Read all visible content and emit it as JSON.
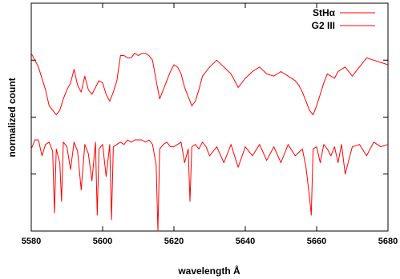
{
  "chart_data": {
    "type": "line",
    "title": "",
    "xlabel": "wavelength Å",
    "ylabel": "normalized count",
    "xlim": [
      5580,
      5680
    ],
    "x_ticks": [
      5580,
      5600,
      5620,
      5640,
      5660,
      5680
    ],
    "x_tick_labels": [
      "5580",
      "5600",
      "5620",
      "5640",
      "5660",
      "5680"
    ],
    "ylim": [
      0,
      1
    ],
    "y_ticks_unlabeled": [
      0.25,
      0.5,
      0.75,
      1.0
    ],
    "grid": false,
    "legend_position": "top-right",
    "series": [
      {
        "name": "StHα",
        "color": "#ff0000",
        "x": [
          5580,
          5582,
          5584,
          5585,
          5586,
          5587,
          5588,
          5589,
          5590,
          5591,
          5592,
          5593,
          5594,
          5595,
          5596,
          5597,
          5598,
          5599,
          5600,
          5601,
          5602,
          5603,
          5604,
          5605,
          5606,
          5607,
          5608,
          5609,
          5610,
          5611,
          5612,
          5613,
          5614,
          5615,
          5616,
          5617,
          5618,
          5619,
          5620,
          5621,
          5622,
          5623,
          5624,
          5625,
          5626,
          5627,
          5628,
          5629,
          5630,
          5632,
          5634,
          5636,
          5638,
          5640,
          5642,
          5644,
          5646,
          5648,
          5650,
          5652,
          5654,
          5655,
          5656,
          5657,
          5658,
          5659,
          5660,
          5661,
          5662,
          5663,
          5664,
          5665,
          5666,
          5668,
          5670,
          5672,
          5674,
          5676,
          5678,
          5680
        ],
        "values": [
          0.78,
          0.72,
          0.62,
          0.55,
          0.53,
          0.51,
          0.53,
          0.58,
          0.62,
          0.65,
          0.71,
          0.64,
          0.61,
          0.68,
          0.62,
          0.6,
          0.63,
          0.66,
          0.65,
          0.6,
          0.57,
          0.61,
          0.66,
          0.77,
          0.77,
          0.76,
          0.76,
          0.78,
          0.77,
          0.78,
          0.78,
          0.77,
          0.75,
          0.66,
          0.58,
          0.62,
          0.66,
          0.7,
          0.73,
          0.72,
          0.69,
          0.63,
          0.59,
          0.55,
          0.57,
          0.62,
          0.68,
          0.7,
          0.72,
          0.75,
          0.72,
          0.69,
          0.63,
          0.67,
          0.7,
          0.72,
          0.69,
          0.68,
          0.7,
          0.68,
          0.66,
          0.64,
          0.61,
          0.57,
          0.53,
          0.51,
          0.55,
          0.6,
          0.65,
          0.69,
          0.68,
          0.67,
          0.7,
          0.72,
          0.68,
          0.72,
          0.76,
          0.75,
          0.74,
          0.73
        ]
      },
      {
        "name": "G2 III",
        "color": "#ff0000",
        "x": [
          5580,
          5581,
          5582,
          5583,
          5584,
          5585,
          5586,
          5586.5,
          5587,
          5588,
          5588.5,
          5589,
          5590,
          5591,
          5592,
          5593,
          5594,
          5595,
          5596,
          5597,
          5598,
          5598.5,
          5599,
          5600,
          5601,
          5602,
          5602.5,
          5603,
          5604,
          5605,
          5606,
          5607,
          5608,
          5609,
          5610,
          5611,
          5612,
          5613,
          5614,
          5615,
          5615.5,
          5616,
          5617,
          5618,
          5619,
          5620,
          5621,
          5622,
          5623,
          5624,
          5624.5,
          5625,
          5626,
          5627,
          5628,
          5629,
          5630,
          5632,
          5634,
          5636,
          5638,
          5640,
          5642,
          5644,
          5646,
          5648,
          5650,
          5652,
          5654,
          5656,
          5657,
          5658,
          5658.5,
          5659,
          5660,
          5661,
          5662,
          5663,
          5664,
          5665,
          5666,
          5667,
          5668,
          5670,
          5672,
          5674,
          5676,
          5678,
          5680
        ],
        "values": [
          0.36,
          0.4,
          0.4,
          0.33,
          0.38,
          0.39,
          0.35,
          0.08,
          0.36,
          0.3,
          0.13,
          0.39,
          0.37,
          0.27,
          0.39,
          0.35,
          0.18,
          0.38,
          0.34,
          0.22,
          0.39,
          0.07,
          0.36,
          0.38,
          0.24,
          0.38,
          0.05,
          0.37,
          0.38,
          0.39,
          0.38,
          0.4,
          0.39,
          0.4,
          0.4,
          0.4,
          0.39,
          0.4,
          0.38,
          0.29,
          0.0,
          0.36,
          0.38,
          0.39,
          0.37,
          0.37,
          0.38,
          0.39,
          0.3,
          0.36,
          0.13,
          0.37,
          0.38,
          0.36,
          0.39,
          0.37,
          0.33,
          0.37,
          0.3,
          0.38,
          0.28,
          0.37,
          0.33,
          0.38,
          0.31,
          0.37,
          0.3,
          0.38,
          0.33,
          0.36,
          0.28,
          0.15,
          0.07,
          0.36,
          0.37,
          0.3,
          0.38,
          0.36,
          0.33,
          0.37,
          0.3,
          0.38,
          0.25,
          0.37,
          0.38,
          0.33,
          0.39,
          0.37,
          0.38
        ]
      }
    ]
  }
}
